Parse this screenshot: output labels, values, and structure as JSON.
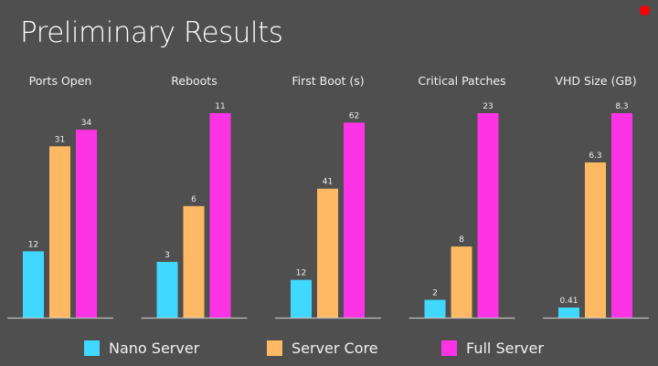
{
  "title": "Preliminary Results",
  "recording_indicator_color": "#ff0000",
  "colors": {
    "Nano Server": "#40d8ff",
    "Server Core": "#ffb964",
    "Full Server": "#ff33e6",
    "axis": "#bfbfbf",
    "background": "#4f4f4f"
  },
  "chart_data": [
    {
      "type": "bar",
      "title": "Ports Open",
      "categories": [
        "Nano Server",
        "Server Core",
        "Full Server"
      ],
      "values": [
        12,
        31,
        34
      ],
      "labels": [
        "12",
        "31",
        "34"
      ],
      "ylim": [
        0,
        37
      ]
    },
    {
      "type": "bar",
      "title": "Reboots",
      "categories": [
        "Nano Server",
        "Server Core",
        "Full Server"
      ],
      "values": [
        3,
        6,
        11
      ],
      "labels": [
        "3",
        "6",
        "11"
      ],
      "ylim": [
        0,
        11
      ]
    },
    {
      "type": "bar",
      "title": "First Boot (s)",
      "categories": [
        "Nano Server",
        "Server Core",
        "Full Server"
      ],
      "values": [
        12,
        41,
        62
      ],
      "labels": [
        "12",
        "41",
        "62"
      ],
      "ylim": [
        0,
        65
      ]
    },
    {
      "type": "bar",
      "title": "Critical Patches",
      "categories": [
        "Nano Server",
        "Server Core",
        "Full Server"
      ],
      "values": [
        2,
        8,
        23
      ],
      "labels": [
        "2",
        "8",
        "23"
      ],
      "ylim": [
        0,
        23
      ]
    },
    {
      "type": "bar",
      "title": "VHD Size (GB)",
      "categories": [
        "Nano Server",
        "Server Core",
        "Full Server"
      ],
      "values": [
        0.41,
        6.3,
        8.3
      ],
      "labels": [
        "0.41",
        "6.3",
        "8.3"
      ],
      "ylim": [
        0,
        8.3
      ]
    }
  ],
  "legend": {
    "placement": "bottom",
    "items": [
      "Nano Server",
      "Server Core",
      "Full Server"
    ]
  }
}
